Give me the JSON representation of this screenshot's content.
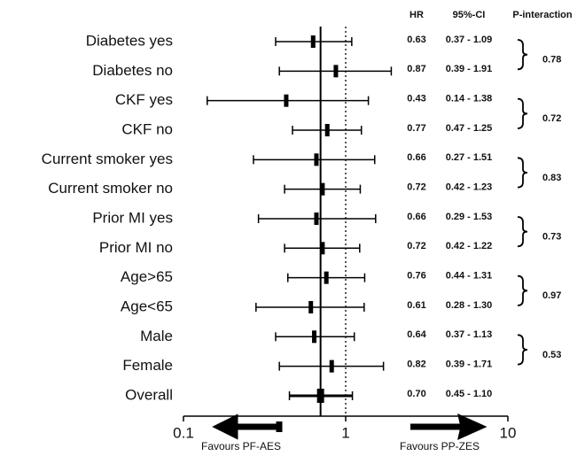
{
  "chart_data": {
    "type": "forest",
    "headers": [
      "HR",
      "95%-CI",
      "P-interaction"
    ],
    "categories": [
      "Diabetes yes",
      "Diabetes no",
      "CKF yes",
      "CKF no",
      "Current smoker yes",
      "Current smoker no",
      "Prior MI yes",
      "Prior MI no",
      "Age>65",
      "Age<65",
      "Male",
      "Female",
      "Overall"
    ],
    "values": [
      0.63,
      0.87,
      0.43,
      0.77,
      0.66,
      0.72,
      0.66,
      0.72,
      0.76,
      0.61,
      0.64,
      0.82,
      0.7
    ],
    "value_labels": [
      "0.63",
      "0.87",
      "0.43",
      "0.77",
      "0.66",
      "0.72",
      "0.66",
      "0.72",
      "0.76",
      "0.61",
      "0.64",
      "0.82",
      "0.70"
    ],
    "lower": [
      0.37,
      0.39,
      0.14,
      0.47,
      0.27,
      0.42,
      0.29,
      0.42,
      0.44,
      0.28,
      0.37,
      0.39,
      0.45
    ],
    "upper": [
      1.09,
      1.91,
      1.38,
      1.25,
      1.51,
      1.23,
      1.53,
      1.22,
      1.31,
      1.3,
      1.13,
      1.71,
      1.1
    ],
    "ci_labels": [
      "0.37 - 1.09",
      "0.39 - 1.91",
      "0.14 - 1.38",
      "0.47 - 1.25",
      "0.27 - 1.51",
      "0.42 - 1.23",
      "0.29 - 1.53",
      "0.42 - 1.22",
      "0.44 - 1.31",
      "0.28 - 1.30",
      "0.37 - 1.13",
      "0.39 - 1.71",
      "0.45 - 1.10"
    ],
    "p_interaction": [
      0.78,
      0.72,
      0.83,
      0.73,
      0.97,
      0.53
    ],
    "xlim": [
      0.1,
      10
    ],
    "xticks": [
      0.1,
      1,
      10
    ],
    "log_x": true,
    "ref_line": 1,
    "color": "#000000",
    "annotations": [
      "Favours PF-AES",
      "Favours PP-ZES"
    ]
  }
}
